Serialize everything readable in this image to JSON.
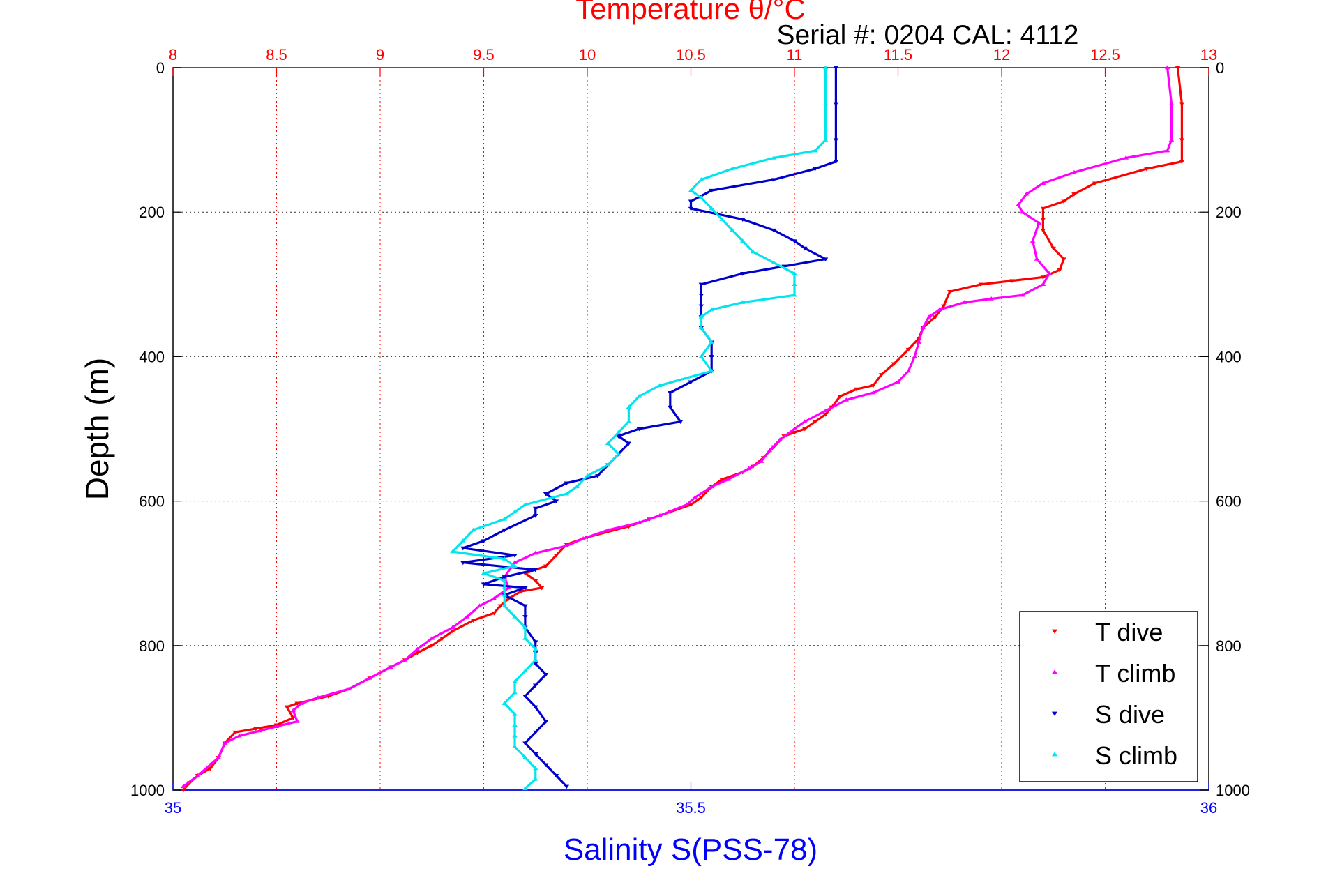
{
  "chart_data": {
    "type": "scatter",
    "title": "Temperature θ/°C",
    "subtitle": "Serial #: 0204  CAL: 4112",
    "ylabel": "Depth (m)",
    "xlabel": "Salinity S(PSS-78)",
    "grid": true,
    "legend_position": "bottom-right",
    "axes": {
      "temperature": {
        "position": "top",
        "range": [
          8,
          13
        ],
        "ticks": [
          "8",
          "8.5",
          "9",
          "9.5",
          "10",
          "10.5",
          "11",
          "11.5",
          "12",
          "12.5",
          "13"
        ],
        "color": "#ff0000"
      },
      "salinity": {
        "position": "bottom",
        "range": [
          35,
          36
        ],
        "ticks": [
          "35",
          "35.5",
          "36"
        ],
        "color": "#0000ff"
      },
      "depth": {
        "range": [
          0,
          1000
        ],
        "reversed": true,
        "ticks": [
          "0",
          "200",
          "400",
          "600",
          "800",
          "1000"
        ]
      }
    },
    "series": [
      {
        "name": "T dive",
        "axis": "temperature",
        "color": "#ff0000",
        "marker": "triangle-down",
        "points": [
          [
            12.85,
            0
          ],
          [
            12.87,
            50
          ],
          [
            12.87,
            100
          ],
          [
            12.87,
            130
          ],
          [
            12.7,
            140
          ],
          [
            12.45,
            160
          ],
          [
            12.35,
            175
          ],
          [
            12.3,
            185
          ],
          [
            12.2,
            195
          ],
          [
            12.2,
            210
          ],
          [
            12.2,
            225
          ],
          [
            12.25,
            250
          ],
          [
            12.3,
            265
          ],
          [
            12.28,
            280
          ],
          [
            12.2,
            290
          ],
          [
            12.05,
            295
          ],
          [
            11.9,
            300
          ],
          [
            11.75,
            310
          ],
          [
            11.72,
            330
          ],
          [
            11.68,
            345
          ],
          [
            11.62,
            360
          ],
          [
            11.6,
            375
          ],
          [
            11.55,
            390
          ],
          [
            11.48,
            410
          ],
          [
            11.42,
            425
          ],
          [
            11.38,
            440
          ],
          [
            11.3,
            445
          ],
          [
            11.22,
            455
          ],
          [
            11.18,
            470
          ],
          [
            11.15,
            480
          ],
          [
            11.1,
            490
          ],
          [
            11.05,
            500
          ],
          [
            11.0,
            505
          ],
          [
            10.95,
            510
          ],
          [
            10.9,
            525
          ],
          [
            10.85,
            540
          ],
          [
            10.8,
            552
          ],
          [
            10.75,
            560
          ],
          [
            10.65,
            570
          ],
          [
            10.6,
            580
          ],
          [
            10.55,
            595
          ],
          [
            10.5,
            605
          ],
          [
            10.4,
            615
          ],
          [
            10.3,
            625
          ],
          [
            10.2,
            635
          ],
          [
            10.0,
            650
          ],
          [
            9.9,
            660
          ],
          [
            9.85,
            675
          ],
          [
            9.8,
            690
          ],
          [
            9.7,
            700
          ],
          [
            9.75,
            710
          ],
          [
            9.78,
            720
          ],
          [
            9.68,
            725
          ],
          [
            9.62,
            735
          ],
          [
            9.58,
            745
          ],
          [
            9.55,
            755
          ],
          [
            9.45,
            765
          ],
          [
            9.35,
            780
          ],
          [
            9.3,
            790
          ],
          [
            9.25,
            800
          ],
          [
            9.18,
            810
          ],
          [
            9.12,
            820
          ],
          [
            9.05,
            830
          ],
          [
            8.95,
            845
          ],
          [
            8.85,
            860
          ],
          [
            8.75,
            870
          ],
          [
            8.6,
            880
          ],
          [
            8.55,
            885
          ],
          [
            8.58,
            900
          ],
          [
            8.5,
            910
          ],
          [
            8.4,
            915
          ],
          [
            8.3,
            920
          ],
          [
            8.25,
            935
          ],
          [
            8.22,
            955
          ],
          [
            8.18,
            970
          ],
          [
            8.12,
            980
          ],
          [
            8.08,
            990
          ],
          [
            8.05,
            1000
          ]
        ]
      },
      {
        "name": "T climb",
        "axis": "temperature",
        "color": "#ff00ff",
        "marker": "triangle-up",
        "points": [
          [
            12.8,
            0
          ],
          [
            12.82,
            50
          ],
          [
            12.82,
            100
          ],
          [
            12.8,
            115
          ],
          [
            12.6,
            125
          ],
          [
            12.35,
            145
          ],
          [
            12.2,
            160
          ],
          [
            12.12,
            175
          ],
          [
            12.08,
            190
          ],
          [
            12.1,
            200
          ],
          [
            12.18,
            215
          ],
          [
            12.15,
            240
          ],
          [
            12.17,
            265
          ],
          [
            12.23,
            285
          ],
          [
            12.2,
            300
          ],
          [
            12.1,
            315
          ],
          [
            11.95,
            320
          ],
          [
            11.82,
            325
          ],
          [
            11.7,
            335
          ],
          [
            11.65,
            345
          ],
          [
            11.62,
            360
          ],
          [
            11.6,
            380
          ],
          [
            11.58,
            400
          ],
          [
            11.55,
            420
          ],
          [
            11.5,
            435
          ],
          [
            11.38,
            450
          ],
          [
            11.25,
            460
          ],
          [
            11.15,
            475
          ],
          [
            11.05,
            490
          ],
          [
            11.0,
            500
          ],
          [
            10.93,
            515
          ],
          [
            10.88,
            530
          ],
          [
            10.84,
            545
          ],
          [
            10.78,
            555
          ],
          [
            10.68,
            570
          ],
          [
            10.6,
            580
          ],
          [
            10.52,
            595
          ],
          [
            10.48,
            605
          ],
          [
            10.35,
            620
          ],
          [
            10.25,
            630
          ],
          [
            10.1,
            640
          ],
          [
            9.98,
            652
          ],
          [
            9.9,
            662
          ],
          [
            9.75,
            672
          ],
          [
            9.65,
            685
          ],
          [
            9.6,
            705
          ],
          [
            9.62,
            720
          ],
          [
            9.55,
            735
          ],
          [
            9.48,
            745
          ],
          [
            9.42,
            760
          ],
          [
            9.35,
            775
          ],
          [
            9.25,
            790
          ],
          [
            9.18,
            805
          ],
          [
            9.12,
            820
          ],
          [
            9.05,
            830
          ],
          [
            8.95,
            845
          ],
          [
            8.85,
            860
          ],
          [
            8.7,
            872
          ],
          [
            8.62,
            880
          ],
          [
            8.58,
            890
          ],
          [
            8.6,
            905
          ],
          [
            8.5,
            912
          ],
          [
            8.42,
            918
          ],
          [
            8.32,
            925
          ],
          [
            8.25,
            935
          ],
          [
            8.22,
            955
          ],
          [
            8.18,
            965
          ],
          [
            8.12,
            980
          ],
          [
            8.05,
            995
          ]
        ]
      },
      {
        "name": "S dive",
        "axis": "salinity",
        "color": "#0000cc",
        "marker": "triangle-down",
        "points": [
          [
            35.64,
            0
          ],
          [
            35.64,
            50
          ],
          [
            35.64,
            100
          ],
          [
            35.64,
            130
          ],
          [
            35.62,
            140
          ],
          [
            35.58,
            155
          ],
          [
            35.52,
            170
          ],
          [
            35.5,
            185
          ],
          [
            35.5,
            195
          ],
          [
            35.55,
            210
          ],
          [
            35.58,
            225
          ],
          [
            35.6,
            240
          ],
          [
            35.61,
            250
          ],
          [
            35.63,
            265
          ],
          [
            35.59,
            275
          ],
          [
            35.55,
            285
          ],
          [
            35.51,
            300
          ],
          [
            35.51,
            315
          ],
          [
            35.51,
            330
          ],
          [
            35.51,
            345
          ],
          [
            35.51,
            360
          ],
          [
            35.52,
            380
          ],
          [
            35.52,
            400
          ],
          [
            35.52,
            420
          ],
          [
            35.5,
            435
          ],
          [
            35.48,
            450
          ],
          [
            35.48,
            470
          ],
          [
            35.49,
            490
          ],
          [
            35.45,
            500
          ],
          [
            35.43,
            510
          ],
          [
            35.44,
            520
          ],
          [
            35.43,
            535
          ],
          [
            35.42,
            550
          ],
          [
            35.41,
            565
          ],
          [
            35.38,
            575
          ],
          [
            35.36,
            590
          ],
          [
            35.37,
            600
          ],
          [
            35.35,
            610
          ],
          [
            35.35,
            620
          ],
          [
            35.32,
            640
          ],
          [
            35.3,
            655
          ],
          [
            35.28,
            665
          ],
          [
            35.33,
            675
          ],
          [
            35.28,
            685
          ],
          [
            35.35,
            695
          ],
          [
            35.32,
            705
          ],
          [
            35.3,
            715
          ],
          [
            35.34,
            720
          ],
          [
            35.32,
            730
          ],
          [
            35.34,
            745
          ],
          [
            35.34,
            760
          ],
          [
            35.34,
            775
          ],
          [
            35.35,
            795
          ],
          [
            35.35,
            810
          ],
          [
            35.35,
            825
          ],
          [
            35.36,
            840
          ],
          [
            35.35,
            855
          ],
          [
            35.34,
            870
          ],
          [
            35.35,
            885
          ],
          [
            35.36,
            905
          ],
          [
            35.35,
            920
          ],
          [
            35.34,
            935
          ],
          [
            35.35,
            950
          ],
          [
            35.36,
            965
          ],
          [
            35.37,
            980
          ],
          [
            35.38,
            995
          ]
        ]
      },
      {
        "name": "S climb",
        "axis": "salinity",
        "color": "#00e5ee",
        "marker": "triangle-up",
        "points": [
          [
            35.63,
            0
          ],
          [
            35.63,
            50
          ],
          [
            35.63,
            100
          ],
          [
            35.62,
            115
          ],
          [
            35.58,
            125
          ],
          [
            35.54,
            140
          ],
          [
            35.51,
            155
          ],
          [
            35.5,
            170
          ],
          [
            35.51,
            180
          ],
          [
            35.52,
            195
          ],
          [
            35.53,
            210
          ],
          [
            35.54,
            225
          ],
          [
            35.55,
            240
          ],
          [
            35.56,
            255
          ],
          [
            35.58,
            270
          ],
          [
            35.6,
            285
          ],
          [
            35.6,
            300
          ],
          [
            35.6,
            315
          ],
          [
            35.55,
            325
          ],
          [
            35.52,
            335
          ],
          [
            35.51,
            345
          ],
          [
            35.51,
            360
          ],
          [
            35.52,
            380
          ],
          [
            35.51,
            400
          ],
          [
            35.52,
            420
          ],
          [
            35.47,
            440
          ],
          [
            35.45,
            455
          ],
          [
            35.44,
            470
          ],
          [
            35.44,
            490
          ],
          [
            35.43,
            505
          ],
          [
            35.42,
            520
          ],
          [
            35.43,
            535
          ],
          [
            35.42,
            550
          ],
          [
            35.4,
            565
          ],
          [
            35.39,
            580
          ],
          [
            35.38,
            590
          ],
          [
            35.34,
            605
          ],
          [
            35.33,
            615
          ],
          [
            35.32,
            625
          ],
          [
            35.29,
            640
          ],
          [
            35.28,
            655
          ],
          [
            35.27,
            670
          ],
          [
            35.32,
            680
          ],
          [
            35.33,
            690
          ],
          [
            35.3,
            700
          ],
          [
            35.32,
            710
          ],
          [
            35.32,
            720
          ],
          [
            35.32,
            730
          ],
          [
            35.32,
            745
          ],
          [
            35.33,
            760
          ],
          [
            35.34,
            775
          ],
          [
            35.34,
            790
          ],
          [
            35.35,
            805
          ],
          [
            35.35,
            820
          ],
          [
            35.34,
            835
          ],
          [
            35.33,
            850
          ],
          [
            35.33,
            865
          ],
          [
            35.32,
            880
          ],
          [
            35.33,
            895
          ],
          [
            35.33,
            910
          ],
          [
            35.33,
            925
          ],
          [
            35.33,
            940
          ],
          [
            35.34,
            955
          ],
          [
            35.35,
            970
          ],
          [
            35.35,
            985
          ],
          [
            35.34,
            998
          ]
        ]
      }
    ]
  }
}
